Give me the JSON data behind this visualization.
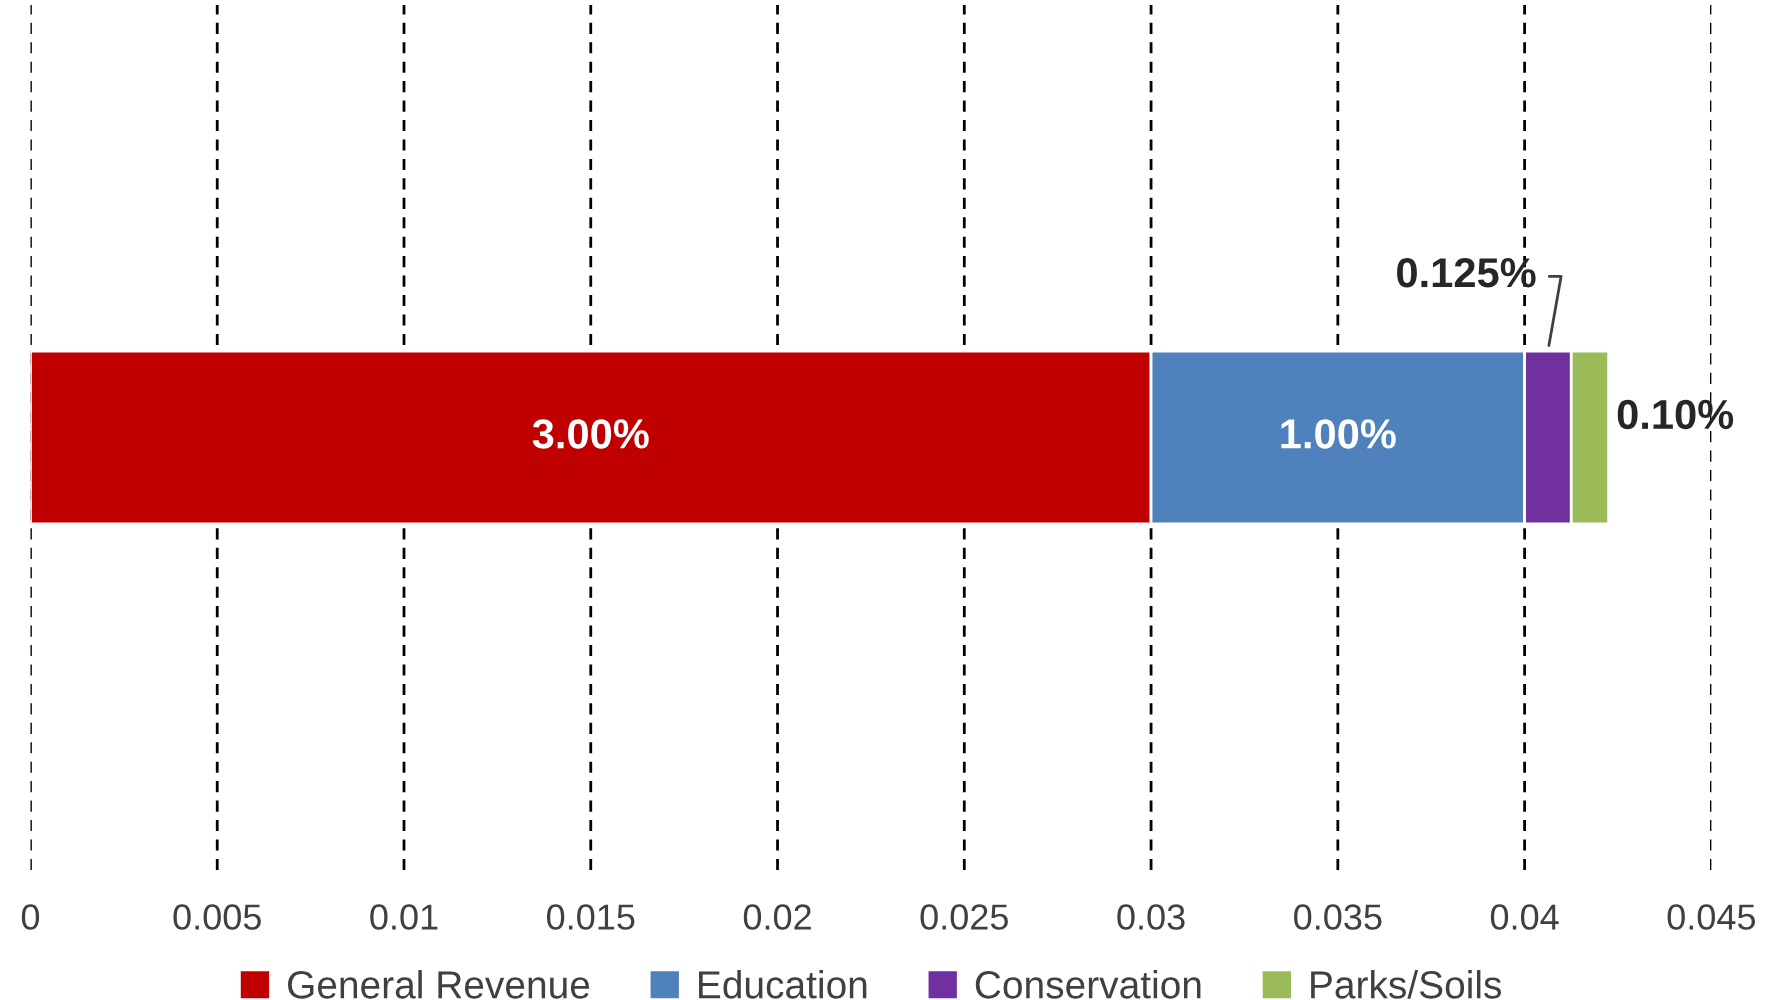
{
  "chart_data": {
    "type": "bar",
    "orientation": "horizontal",
    "stacked": true,
    "categories": [
      null
    ],
    "series": [
      {
        "name": "General Revenue",
        "color": "#c00000",
        "values": [
          0.03
        ],
        "value_labels": [
          "3.00%"
        ]
      },
      {
        "name": "Education",
        "color": "#4f81bd",
        "values": [
          0.01
        ],
        "value_labels": [
          "1.00%"
        ]
      },
      {
        "name": "Conservation",
        "color": "#7030a0",
        "values": [
          0.00125
        ],
        "value_labels": [
          "0.125%"
        ]
      },
      {
        "name": "Parks/Soils",
        "color": "#9bbb59",
        "values": [
          0.001
        ],
        "value_labels": [
          "0.10%"
        ]
      }
    ],
    "xlim": [
      0,
      0.045
    ],
    "xticks": [
      0,
      0.005,
      0.01,
      0.015,
      0.02,
      0.025,
      0.03,
      0.035,
      0.04,
      0.045
    ],
    "grid": "x",
    "legend": "bottom"
  }
}
